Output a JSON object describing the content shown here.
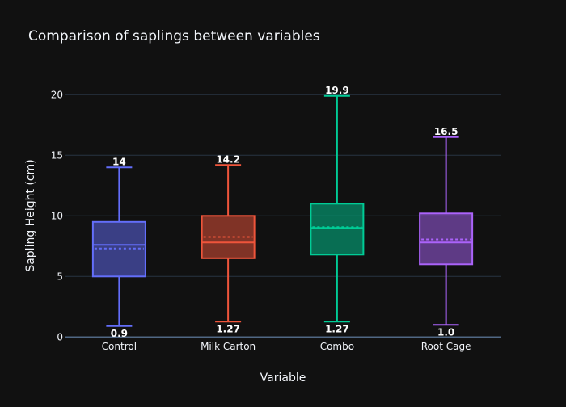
{
  "chart_data": {
    "type": "box",
    "title": "Comparison of saplings between variables",
    "xlabel": "Variable",
    "ylabel": "Sapling Height (cm)",
    "ylim": [
      0,
      21
    ],
    "yticks": [
      0,
      5,
      10,
      15,
      20
    ],
    "grid": true,
    "categories": [
      "Control",
      "Milk Carton",
      "Combo",
      "Root Cage"
    ],
    "series": [
      {
        "name": "Control",
        "color": "#636efa",
        "min": 0.9,
        "q1": 5.0,
        "median": 7.6,
        "mean": 7.3,
        "q3": 9.5,
        "max": 14,
        "min_label": "0.9",
        "max_label": "14"
      },
      {
        "name": "Milk Carton",
        "color": "#ef553b",
        "min": 1.27,
        "q1": 6.5,
        "median": 7.8,
        "mean": 8.25,
        "q3": 10.0,
        "max": 14.2,
        "min_label": "1.27",
        "max_label": "14.2"
      },
      {
        "name": "Combo",
        "color": "#00cc96",
        "min": 1.27,
        "q1": 6.8,
        "median": 9.0,
        "mean": 9.07,
        "q3": 11.0,
        "max": 19.9,
        "min_label": "1.27",
        "max_label": "19.9"
      },
      {
        "name": "Root Cage",
        "color": "#ab63fa",
        "min": 1.0,
        "q1": 6.0,
        "median": 7.8,
        "mean": 8.05,
        "q3": 10.2,
        "max": 16.5,
        "min_label": "1.0",
        "max_label": "16.5"
      }
    ]
  }
}
